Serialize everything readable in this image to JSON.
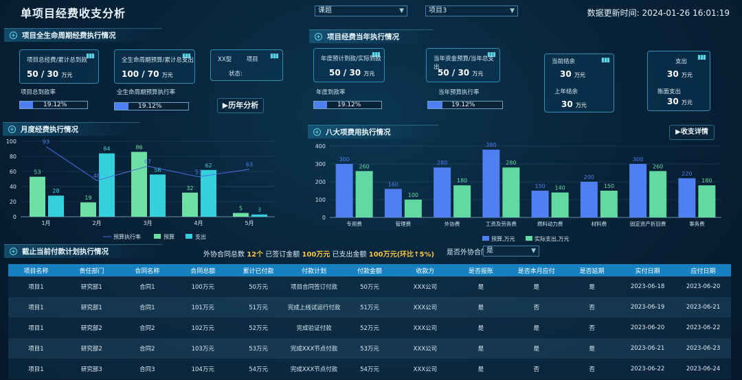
{
  "header": {
    "title": "单项目经费收支分析",
    "filter1": "课题",
    "filter2": "项目3",
    "update_label": "数据更新时间:",
    "update_time": "2024-01-26 16:01:19"
  },
  "lifecycle": {
    "section": "项目全生命周期经费执行情况",
    "card1": {
      "label": "项目总经费/累计总到款",
      "value": "50 / 30",
      "unit": "万元"
    },
    "card2": {
      "label": "全生命周期预算/累计总支出",
      "value": "100 / 70",
      "unit": "万元"
    },
    "card3": {
      "line1": "XX型",
      "line1b": "项目",
      "line2": "状态:"
    },
    "p1": {
      "label": "项目总到款率",
      "value": "19.12%",
      "fraction": 0.19
    },
    "p2": {
      "label": "全生命周期预算执行率",
      "value": "19.12%",
      "fraction": 0.19
    },
    "history_button": "▶历年分析"
  },
  "annual": {
    "section": "项目经费当年执行情况",
    "card1": {
      "label": "年度预计到款/实际到款",
      "value": "50 / 30",
      "unit": "万元"
    },
    "card2": {
      "label": "当年资金预算/当年总支出",
      "value": "50 / 30",
      "unit": "万元"
    },
    "p1": {
      "label": "年度到款率",
      "value": "19.12%",
      "fraction": 0.19
    },
    "p2": {
      "label": "当年预算执行率",
      "value": "19.12%",
      "fraction": 0.19
    },
    "stat1": {
      "label1": "当前结余",
      "value1": "30",
      "label2": "上年结余",
      "value2": "30",
      "unit": "万元"
    },
    "stat2": {
      "label1": "支出",
      "value1": "30",
      "label2": "账面支出",
      "value2": "30",
      "unit": "万元"
    }
  },
  "monthly": {
    "section": "月度经费执行情况"
  },
  "eight": {
    "section": "八大项费用执行情况",
    "detail_button": "▶收支详情"
  },
  "payment": {
    "section": "截止当前付款计划执行情况",
    "text1": "外协合同总数",
    "count": "12个",
    "text2": "已签订金额",
    "signed": "100万元",
    "text3": "已支出金额",
    "paid": "100万元(环比↑5%)",
    "filter_label": "是否外协合同",
    "filter_value": "是"
  },
  "table": {
    "headers": [
      "项目名称",
      "责任部门",
      "合同名称",
      "合同总额",
      "累计已付款",
      "付款计划",
      "付款金额",
      "收款方",
      "是否报账",
      "是否本月应付",
      "是否延期",
      "实付日期",
      "应付日期"
    ],
    "rows": [
      [
        "项目1",
        "研究部1",
        "合同1",
        "100万元",
        "50万元",
        "项目合同签订付款",
        "50万元",
        "XXX公司",
        "是",
        "是",
        "是",
        "2023-06-18",
        "2023-06-20"
      ],
      [
        "项目1",
        "研究部1",
        "合同1",
        "101万元",
        "51万元",
        "完成上线试运行付款",
        "51万元",
        "XXX公司",
        "是",
        "否",
        "否",
        "2023-06-19",
        "2023-06-21"
      ],
      [
        "项目1",
        "研究部2",
        "合同2",
        "102万元",
        "52万元",
        "完成验证付款",
        "52万元",
        "XXX公司",
        "是",
        "是",
        "否",
        "2023-06-20",
        "2023-06-22"
      ],
      [
        "项目1",
        "研究部2",
        "合同2",
        "103万元",
        "53万元",
        "完成XXX节点付款",
        "53万元",
        "XXX公司",
        "是",
        "是",
        "是",
        "2023-06-21",
        "2023-06-23"
      ],
      [
        "项目1",
        "研究部3",
        "合同3",
        "104万元",
        "54万元",
        "完成XXX节点付款",
        "54万元",
        "XXX公司",
        "是",
        "否",
        "否",
        "2023-06-22",
        "2023-06-24"
      ]
    ]
  },
  "chart_data": [
    {
      "type": "bar",
      "title": "月度经费执行情况",
      "categories": [
        "1月",
        "2月",
        "3月",
        "4月",
        "5月"
      ],
      "ylim": [
        0,
        100
      ],
      "yticks": [
        0,
        20,
        40,
        60,
        80,
        100
      ],
      "series": [
        {
          "name": "预算执行率",
          "type": "line",
          "color": "#4a6fe0",
          "values": [
            93,
            48,
            67,
            53,
            63
          ]
        },
        {
          "name": "预算",
          "color": "#6fe0a4",
          "values": [
            53,
            19,
            86,
            32,
            5
          ]
        },
        {
          "name": "支出",
          "color": "#36d0dc",
          "values": [
            28,
            84,
            56,
            62,
            3
          ]
        }
      ],
      "legend": "bottom"
    },
    {
      "type": "bar",
      "title": "八大项费用执行情况",
      "categories": [
        "专用费",
        "管理费",
        "外协费",
        "工资及劳务费",
        "燃料动力费",
        "材料费",
        "固定资产折旧费",
        "事务费"
      ],
      "ylim": [
        0,
        400
      ],
      "yticks": [
        0,
        100,
        200,
        300,
        400
      ],
      "series": [
        {
          "name": "预算,万元",
          "color": "#4f7ff0",
          "values": [
            300,
            160,
            280,
            380,
            150,
            200,
            300,
            220
          ]
        },
        {
          "name": "实际支出,万元",
          "color": "#62d9a0",
          "values": [
            260,
            100,
            180,
            280,
            140,
            150,
            260,
            180
          ]
        }
      ],
      "legend": "bottom"
    }
  ]
}
